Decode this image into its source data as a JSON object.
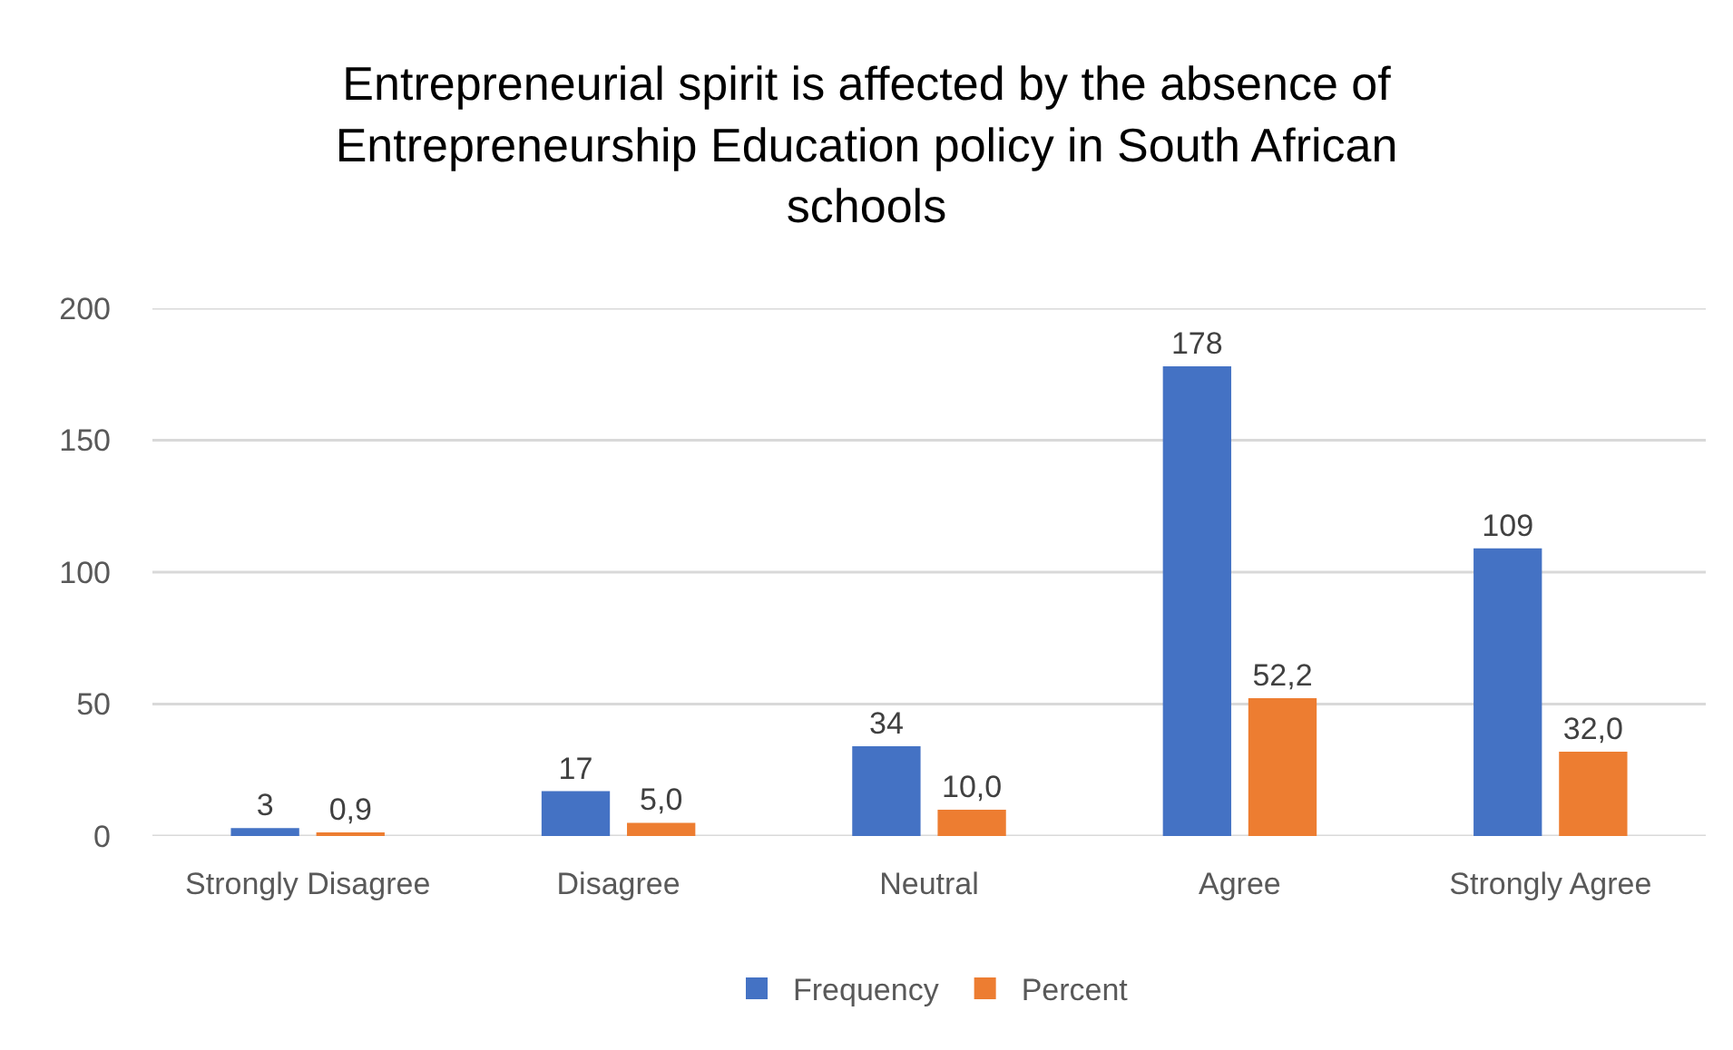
{
  "chart_data": {
    "type": "bar",
    "title": "Entrepreneurial spirit is affected by the absence of Entrepreneurship Education policy in South African schools",
    "categories": [
      "Strongly Disagree",
      "Disagree",
      "Neutral",
      "Agree",
      "Strongly Agree"
    ],
    "series": [
      {
        "name": "Frequency",
        "color": "#4472c4",
        "values": [
          3,
          17,
          34,
          178,
          109
        ],
        "value_labels": [
          "3",
          "17",
          "34",
          "178",
          "109"
        ]
      },
      {
        "name": "Percent",
        "color": "#ed7d31",
        "values": [
          0.9,
          5.0,
          10.0,
          52.2,
          32.0
        ],
        "value_labels": [
          "0,9",
          "5,0",
          "10,0",
          "52,2",
          "32,0"
        ]
      }
    ],
    "ylim": [
      0,
      200
    ],
    "yticks": [
      0,
      50,
      100,
      150,
      200
    ],
    "grid": "y",
    "legend": "bottom"
  }
}
